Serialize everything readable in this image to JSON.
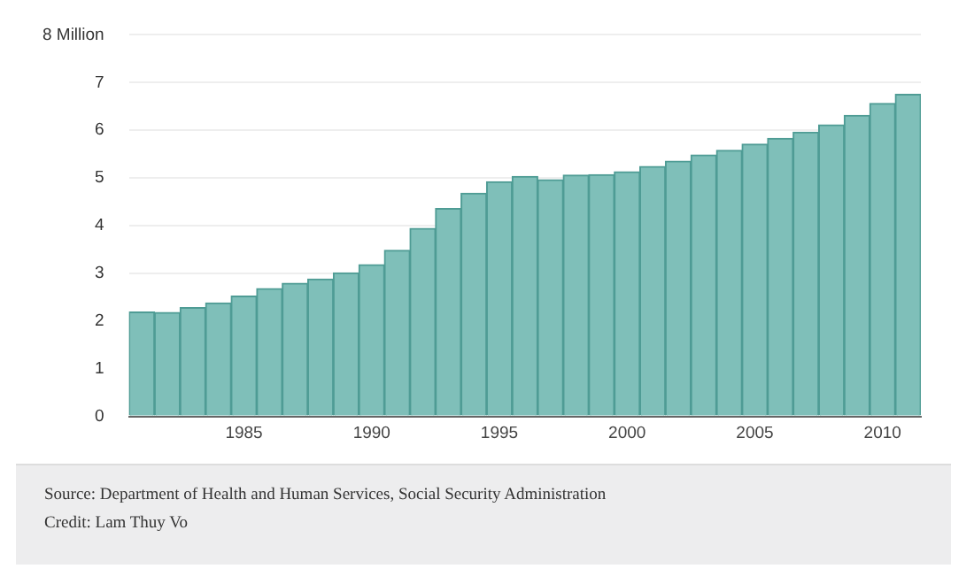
{
  "chart_data": {
    "type": "bar",
    "categories": [
      null,
      null,
      null,
      null,
      "1985",
      null,
      null,
      null,
      null,
      "1990",
      null,
      null,
      null,
      null,
      "1995",
      null,
      null,
      null,
      null,
      "2000",
      null,
      null,
      null,
      null,
      "2005",
      null,
      null,
      null,
      null,
      "2010",
      null
    ],
    "values": [
      2.19,
      2.18,
      2.28,
      2.38,
      2.52,
      2.68,
      2.79,
      2.88,
      3.01,
      3.18,
      3.48,
      3.94,
      4.36,
      4.68,
      4.92,
      5.03,
      4.96,
      5.06,
      5.07,
      5.13,
      5.24,
      5.35,
      5.48,
      5.58,
      5.71,
      5.83,
      5.96,
      6.11,
      6.31,
      6.56,
      6.75
    ],
    "color": "#7fbfb9",
    "ylim": [
      0,
      8
    ],
    "yticks": [
      0,
      1,
      2,
      3,
      4,
      5,
      6,
      7,
      {
        "value": 8,
        "label": "8 Million"
      }
    ],
    "grid": "y",
    "annotations": [
      "Source: Department of Health and Human Services, Social Security Administration",
      "Credit: Lam Thuy Vo"
    ]
  }
}
